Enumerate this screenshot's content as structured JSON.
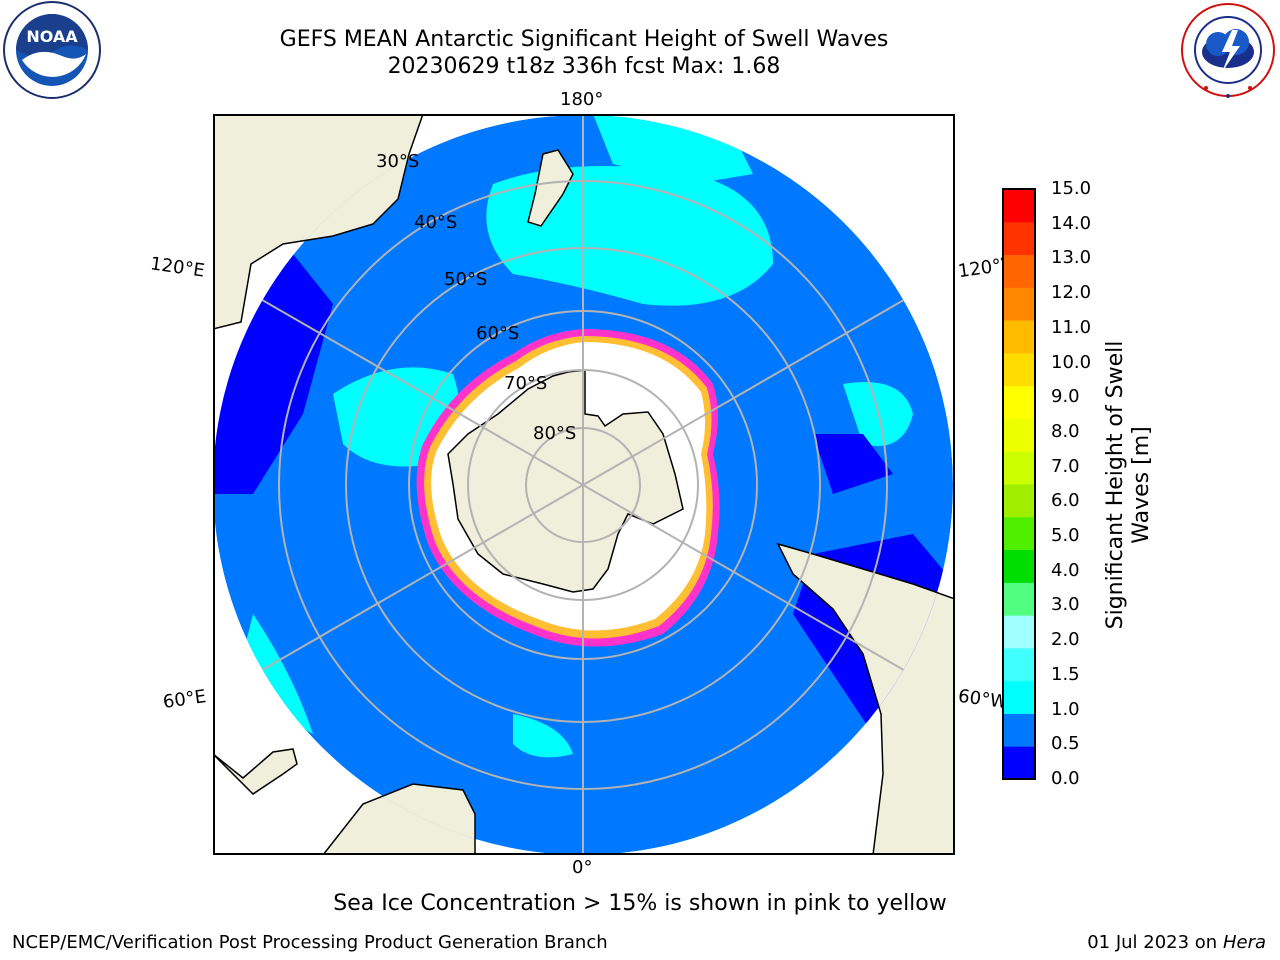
{
  "header": {
    "title_line1": "GEFS MEAN Antarctic Significant Height of Swell Waves",
    "title_line2": "20230629 t18z 336h fcst   Max: 1.68"
  },
  "logos": {
    "left": {
      "name": "NOAA",
      "ring_text": "NATIONAL OCEANIC AND ATMOSPHERIC ADMINISTRATION",
      "bottom_text": "U.S. DEPARTMENT OF COMMERCE"
    },
    "right": {
      "ring_text": "NATIONAL WEATHER SERVICE"
    }
  },
  "map": {
    "projection": "south polar stereographic",
    "longitude_labels": {
      "top": "180°",
      "bottom": "0°",
      "upper_left": "120°E",
      "lower_left": "60°E",
      "upper_right": "120°W",
      "lower_right": "60°W"
    },
    "latitude_labels": [
      "30°S",
      "40°S",
      "50°S",
      "60°S",
      "70°S",
      "80°S"
    ],
    "colors": {
      "land": "#efefdc",
      "ocean_low": "#0078ff",
      "ocean_lowest": "#0000ff",
      "swell_1_1_5": "#00ffff",
      "sea_ice": "#ffffff",
      "ice_edge_pink": "#ff33cc",
      "ice_edge_yellow": "#ffbf33"
    }
  },
  "colorbar": {
    "title": "Significant Height of Swell Waves [m]",
    "ticks": [
      "15.0",
      "14.0",
      "13.0",
      "12.0",
      "11.0",
      "10.0",
      "9.0",
      "8.0",
      "7.0",
      "6.0",
      "5.0",
      "4.0",
      "3.0",
      "2.0",
      "1.5",
      "1.0",
      "0.5",
      "0.0"
    ],
    "colors_bottom_to_top": [
      "#0000ff",
      "#0078ff",
      "#00ffff",
      "#40ffff",
      "#a0ffff",
      "#50ff80",
      "#00dd00",
      "#50ee00",
      "#a0ee00",
      "#ccff00",
      "#eeff00",
      "#ffff00",
      "#ffdd00",
      "#ffbb00",
      "#ff8800",
      "#ff6600",
      "#ff3300",
      "#ff0000"
    ]
  },
  "footer": {
    "ice_note": "Sea Ice Concentration > 15% is shown in pink to yellow",
    "left": "NCEP/EMC/Verification Post Processing Product Generation Branch",
    "right_date": "01 Jul 2023 on",
    "right_host": "Hera"
  }
}
